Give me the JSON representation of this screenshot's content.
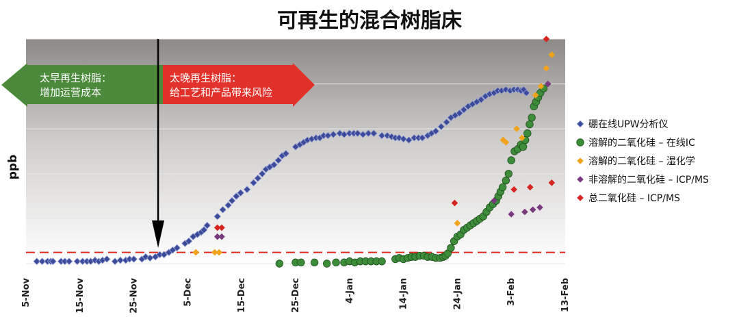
{
  "chart_data": {
    "type": "scatter",
    "title": "可再生的混合树脂床",
    "xlabel": "",
    "ylabel": "ppb",
    "x_unit": "days since 5-Nov",
    "xlim": [
      0,
      100
    ],
    "ylim": [
      0,
      100
    ],
    "grid": true,
    "legend_position": "right",
    "x_ticks": [
      {
        "label": "5-Nov",
        "value": 0
      },
      {
        "label": "15-Nov",
        "value": 10
      },
      {
        "label": "25-Nov",
        "value": 20
      },
      {
        "label": "5-Dec",
        "value": 30
      },
      {
        "label": "15-Dec",
        "value": 40
      },
      {
        "label": "25-Dec",
        "value": 50
      },
      {
        "label": "4-Jan",
        "value": 60
      },
      {
        "label": "14-Jan",
        "value": 70
      },
      {
        "label": "24-Jan",
        "value": 80
      },
      {
        "label": "3-Feb",
        "value": 90
      },
      {
        "label": "13-Feb",
        "value": 100
      }
    ],
    "y_gridlines": [
      0,
      20,
      40,
      60,
      80,
      100
    ],
    "reference_line": {
      "y": 5,
      "color": "#e0281e",
      "style": "dashed"
    },
    "regen_marker_x": 24.5,
    "early_regen_label": [
      "太早再生树脂：",
      "增加运营成本"
    ],
    "late_regen_label": [
      "太晚再生树脂：",
      "给工艺和产品带来风险"
    ],
    "series": [
      {
        "name": "硼在线UPW分析仪",
        "color": "#3b4b9a",
        "marker": "diamond",
        "points": [
          [
            2,
            1
          ],
          [
            3,
            1
          ],
          [
            4,
            1
          ],
          [
            4.6,
            1
          ],
          [
            5,
            1
          ],
          [
            6.5,
            1
          ],
          [
            7.2,
            1
          ],
          [
            8,
            1
          ],
          [
            9.5,
            1
          ],
          [
            10.5,
            1
          ],
          [
            11.3,
            1
          ],
          [
            12,
            1
          ],
          [
            12.8,
            1.5
          ],
          [
            13.5,
            1
          ],
          [
            14.2,
            1.5
          ],
          [
            15,
            2
          ],
          [
            16.5,
            1
          ],
          [
            17.5,
            1.5
          ],
          [
            18.5,
            1.5
          ],
          [
            19.2,
            2
          ],
          [
            20,
            2
          ],
          [
            21.5,
            2
          ],
          [
            22.2,
            3
          ],
          [
            23,
            2.5
          ],
          [
            24,
            3
          ],
          [
            24.8,
            4
          ],
          [
            25.6,
            4
          ],
          [
            26.5,
            5
          ],
          [
            27.2,
            6
          ],
          [
            28,
            7
          ],
          [
            29.5,
            9
          ],
          [
            30.2,
            10
          ],
          [
            31,
            12
          ],
          [
            31.8,
            13
          ],
          [
            32.5,
            14
          ],
          [
            33,
            15
          ],
          [
            33.6,
            17
          ],
          [
            35.5,
            21
          ],
          [
            36.5,
            24
          ],
          [
            37.5,
            26
          ],
          [
            38.2,
            28
          ],
          [
            39,
            30
          ],
          [
            39.8,
            31.5
          ],
          [
            41,
            33
          ],
          [
            42.2,
            36
          ],
          [
            43,
            38
          ],
          [
            43.8,
            40
          ],
          [
            44.5,
            42
          ],
          [
            45.2,
            43
          ],
          [
            46,
            44
          ],
          [
            46.8,
            46
          ],
          [
            47.5,
            48
          ],
          [
            48.2,
            49
          ],
          [
            50,
            52
          ],
          [
            50.8,
            53
          ],
          [
            51.5,
            54
          ],
          [
            52.2,
            55
          ],
          [
            53,
            55.5
          ],
          [
            53.8,
            56
          ],
          [
            54.5,
            56
          ],
          [
            55.2,
            57
          ],
          [
            56,
            57
          ],
          [
            57,
            57.5
          ],
          [
            58.2,
            58
          ],
          [
            59,
            57.5
          ],
          [
            60,
            58
          ],
          [
            60.8,
            58
          ],
          [
            61.5,
            58
          ],
          [
            62.5,
            57.5
          ],
          [
            63.5,
            58
          ],
          [
            64.5,
            58
          ],
          [
            66,
            57
          ],
          [
            67,
            57
          ],
          [
            67.8,
            56.5
          ],
          [
            68.5,
            56
          ],
          [
            69.2,
            56
          ],
          [
            70,
            55.5
          ],
          [
            71,
            55
          ],
          [
            72,
            56
          ],
          [
            72.8,
            56
          ],
          [
            73.5,
            56
          ],
          [
            74.5,
            57
          ],
          [
            75.2,
            58
          ],
          [
            76,
            59
          ],
          [
            77,
            61
          ],
          [
            78,
            63
          ],
          [
            78.8,
            65
          ],
          [
            79.6,
            66
          ],
          [
            80.4,
            67
          ],
          [
            81.2,
            68.5
          ],
          [
            82,
            70
          ],
          [
            82.8,
            71
          ],
          [
            83.6,
            72
          ],
          [
            84.4,
            73
          ],
          [
            85.2,
            74.5
          ],
          [
            86,
            75.5
          ],
          [
            86.8,
            76
          ],
          [
            87.5,
            77
          ],
          [
            88.2,
            77
          ],
          [
            89,
            77.5
          ],
          [
            89.8,
            77
          ],
          [
            90.5,
            77.5
          ],
          [
            91.2,
            77.5
          ],
          [
            91.8,
            77
          ],
          [
            92.3,
            77.5
          ],
          [
            92.8,
            76
          ]
        ]
      },
      {
        "name": "溶解的二氧化硅 – 在线IC",
        "color": "#3d8c3a",
        "marker": "circle",
        "points": [
          [
            47,
            0
          ],
          [
            50,
            0.5
          ],
          [
            51,
            0.5
          ],
          [
            53.5,
            0.5
          ],
          [
            55.8,
            0
          ],
          [
            57.5,
            0.5
          ],
          [
            59,
            0.5
          ],
          [
            60,
            1
          ],
          [
            61,
            0.5
          ],
          [
            62,
            1
          ],
          [
            63,
            1
          ],
          [
            64,
            1
          ],
          [
            65,
            1
          ],
          [
            66,
            1
          ],
          [
            68.5,
            2
          ],
          [
            69.2,
            2.5
          ],
          [
            70,
            2
          ],
          [
            70.8,
            2.5
          ],
          [
            71.5,
            3
          ],
          [
            72.2,
            3
          ],
          [
            73,
            3.5
          ],
          [
            73.8,
            3.5
          ],
          [
            74.5,
            3
          ],
          [
            75.3,
            3
          ],
          [
            76,
            2.5
          ],
          [
            76.8,
            2.5
          ],
          [
            77.4,
            3
          ],
          [
            77.8,
            3.5
          ],
          [
            78.2,
            4.5
          ],
          [
            78.8,
            7
          ],
          [
            79.4,
            10
          ],
          [
            80,
            12
          ],
          [
            80.6,
            13
          ],
          [
            81.2,
            15
          ],
          [
            81.8,
            16
          ],
          [
            82.4,
            17
          ],
          [
            83,
            18
          ],
          [
            83.6,
            19
          ],
          [
            84.2,
            20
          ],
          [
            84.8,
            21
          ],
          [
            85.4,
            23
          ],
          [
            86,
            25
          ],
          [
            86.6,
            26.5
          ],
          [
            87.2,
            28
          ],
          [
            87.6,
            30
          ],
          [
            88,
            32
          ],
          [
            88.4,
            34
          ],
          [
            89,
            37
          ],
          [
            89.5,
            40
          ],
          [
            90,
            46
          ],
          [
            90.6,
            50
          ],
          [
            91.2,
            51
          ],
          [
            91.8,
            53
          ],
          [
            92.2,
            52
          ],
          [
            92.6,
            55
          ],
          [
            93,
            58
          ],
          [
            93.4,
            62
          ],
          [
            93.8,
            65
          ],
          [
            94.2,
            70
          ],
          [
            94.6,
            72
          ],
          [
            95,
            74
          ],
          [
            95.4,
            76
          ],
          [
            96,
            78
          ]
        ]
      },
      {
        "name": "溶解的二氧化硅 – 湿化学",
        "color": "#f2a31c",
        "marker": "diamond",
        "points": [
          [
            31.5,
            5
          ],
          [
            35,
            5
          ],
          [
            35.8,
            5
          ],
          [
            80,
            18
          ],
          [
            88.5,
            55
          ],
          [
            89,
            54
          ],
          [
            91,
            60
          ],
          [
            92,
            56
          ],
          [
            94.5,
            75
          ],
          [
            95.5,
            79
          ],
          [
            96.5,
            87
          ],
          [
            97.5,
            93
          ]
        ]
      },
      {
        "name": "非溶解的二氧化硅 – ICP/MS",
        "color": "#7a3a7e",
        "marker": "diamond",
        "points": [
          [
            35.5,
            12
          ],
          [
            36.3,
            12
          ],
          [
            86.8,
            28
          ],
          [
            90,
            22
          ],
          [
            92.5,
            23
          ],
          [
            94,
            24
          ],
          [
            95.3,
            25
          ],
          [
            96.8,
            80
          ]
        ]
      },
      {
        "name": "总二氧化硅 – ICP/MS",
        "color": "#d62420",
        "marker": "diamond",
        "points": [
          [
            35.5,
            16
          ],
          [
            36.3,
            16
          ],
          [
            79.5,
            27
          ],
          [
            90.5,
            33
          ],
          [
            93.5,
            34
          ],
          [
            97.5,
            36
          ],
          [
            96.5,
            100
          ]
        ]
      }
    ]
  }
}
